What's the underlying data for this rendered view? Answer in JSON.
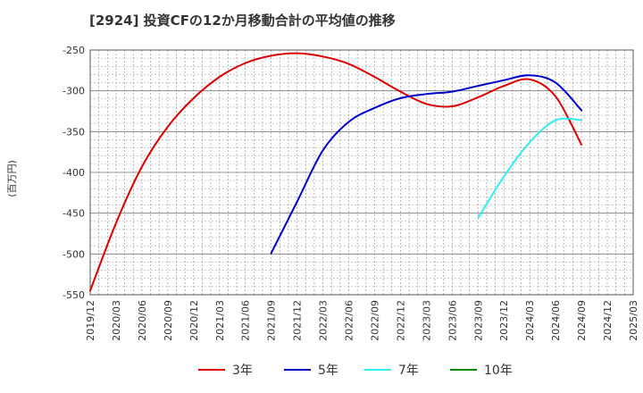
{
  "chart_data": {
    "type": "line",
    "title": "[2924]  投資CFの12か月移動合計の平均値の推移",
    "ylabel": "(百万円)",
    "xlabel": "",
    "grid": true,
    "legend_position": "bottom",
    "ylim": [
      -550,
      -250
    ],
    "yticks": [
      -550,
      -500,
      -450,
      -400,
      -350,
      -300,
      -250
    ],
    "x_categories": [
      "2019/12",
      "2020/03",
      "2020/06",
      "2020/09",
      "2020/12",
      "2021/03",
      "2021/06",
      "2021/09",
      "2021/12",
      "2022/03",
      "2022/06",
      "2022/09",
      "2022/12",
      "2023/03",
      "2023/06",
      "2023/09",
      "2023/12",
      "2024/03",
      "2024/06",
      "2024/09",
      "2024/12",
      "2025/03"
    ],
    "series": [
      {
        "name": "3年",
        "color": "#dd0000",
        "points": [
          [
            "2019/12",
            -545
          ],
          [
            "2020/03",
            -462
          ],
          [
            "2020/06",
            -393
          ],
          [
            "2020/09",
            -344
          ],
          [
            "2020/12",
            -309
          ],
          [
            "2021/03",
            -283
          ],
          [
            "2021/06",
            -266
          ],
          [
            "2021/09",
            -257
          ],
          [
            "2021/12",
            -254
          ],
          [
            "2022/03",
            -258
          ],
          [
            "2022/06",
            -267
          ],
          [
            "2022/09",
            -283
          ],
          [
            "2022/12",
            -301
          ],
          [
            "2023/03",
            -316
          ],
          [
            "2023/06",
            -319
          ],
          [
            "2023/09",
            -308
          ],
          [
            "2023/12",
            -294
          ],
          [
            "2024/03",
            -286
          ],
          [
            "2024/06",
            -307
          ],
          [
            "2024/09",
            -366
          ]
        ]
      },
      {
        "name": "5年",
        "color": "#0000cc",
        "points": [
          [
            "2021/09",
            -499
          ],
          [
            "2021/12",
            -436
          ],
          [
            "2022/03",
            -373
          ],
          [
            "2022/06",
            -338
          ],
          [
            "2022/09",
            -321
          ],
          [
            "2022/12",
            -309
          ],
          [
            "2023/03",
            -304
          ],
          [
            "2023/06",
            -301
          ],
          [
            "2023/09",
            -294
          ],
          [
            "2023/12",
            -287
          ],
          [
            "2024/03",
            -281
          ],
          [
            "2024/06",
            -290
          ],
          [
            "2024/09",
            -324
          ]
        ]
      },
      {
        "name": "7年",
        "color": "#33eeee",
        "points": [
          [
            "2023/09",
            -456
          ],
          [
            "2023/12",
            -405
          ],
          [
            "2024/03",
            -363
          ],
          [
            "2024/06",
            -336
          ],
          [
            "2024/09",
            -336
          ]
        ]
      },
      {
        "name": "10年",
        "color": "#008800",
        "points": []
      }
    ]
  }
}
